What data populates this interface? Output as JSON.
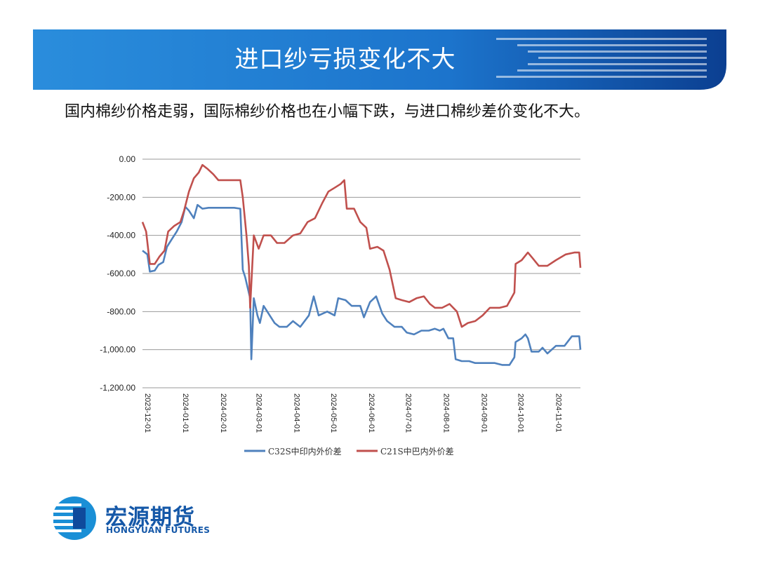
{
  "slide": {
    "title": "进口纱亏损变化不大",
    "subtitle": "国内棉纱价格走弱，国际棉纱价格也在小幅下跌，与进口棉纱差价变化不大。",
    "colors": {
      "banner": "#1a84d6",
      "banner_dark": "#0b3f91",
      "text": "#111111"
    }
  },
  "logo": {
    "name_cn": "宏源期货",
    "name_en": "HONGYUAN FUTURES",
    "icon": "hongyuan-logo-icon",
    "color": "#1558a8"
  },
  "chart_data": {
    "type": "line",
    "title": "",
    "xlabel": "",
    "ylabel": "",
    "ylim": [
      -1200,
      0
    ],
    "yticks": [
      0,
      -200,
      -400,
      -600,
      -800,
      -1000,
      -1200
    ],
    "ytick_labels": [
      "0.00",
      "-200.00",
      "-400.00",
      "-600.00",
      "-800.00",
      "-1,000.00",
      "-1,200.00"
    ],
    "x_range": [
      "2023-12-01",
      "2024-11-23"
    ],
    "xtick_labels": [
      "2023-12-01",
      "2024-01-01",
      "2024-02-01",
      "2024-03-01",
      "2024-04-01",
      "2024-05-01",
      "2024-06-01",
      "2024-07-01",
      "2024-08-01",
      "2024-09-01",
      "2024-10-01",
      "2024-11-01"
    ],
    "grid": "horizontal",
    "legend": "bottom",
    "series": [
      {
        "name": "C32S中印内外价差",
        "color": "#4f81bd",
        "points": [
          [
            "2023-12-01",
            -480
          ],
          [
            "2023-12-05",
            -500
          ],
          [
            "2023-12-07",
            -590
          ],
          [
            "2023-12-11",
            -585
          ],
          [
            "2023-12-14",
            -555
          ],
          [
            "2023-12-18",
            -540
          ],
          [
            "2023-12-21",
            -460
          ],
          [
            "2023-12-25",
            -420
          ],
          [
            "2023-12-29",
            -380
          ],
          [
            "2024-01-02",
            -330
          ],
          [
            "2024-01-05",
            -250
          ],
          [
            "2024-01-08",
            -270
          ],
          [
            "2024-01-12",
            -310
          ],
          [
            "2024-01-15",
            -240
          ],
          [
            "2024-01-19",
            -260
          ],
          [
            "2024-01-24",
            -255
          ],
          [
            "2024-01-29",
            -255
          ],
          [
            "2024-02-05",
            -255
          ],
          [
            "2024-02-14",
            -255
          ],
          [
            "2024-02-19",
            -260
          ],
          [
            "2024-02-21",
            -580
          ],
          [
            "2024-02-23",
            -620
          ],
          [
            "2024-02-27",
            -730
          ],
          [
            "2024-02-28",
            -1050
          ],
          [
            "2024-03-01",
            -730
          ],
          [
            "2024-03-04",
            -820
          ],
          [
            "2024-03-06",
            -860
          ],
          [
            "2024-03-09",
            -770
          ],
          [
            "2024-03-14",
            -820
          ],
          [
            "2024-03-18",
            -860
          ],
          [
            "2024-03-22",
            -880
          ],
          [
            "2024-03-28",
            -880
          ],
          [
            "2024-04-02",
            -850
          ],
          [
            "2024-04-08",
            -880
          ],
          [
            "2024-04-15",
            -820
          ],
          [
            "2024-04-19",
            -720
          ],
          [
            "2024-04-23",
            -820
          ],
          [
            "2024-04-30",
            -800
          ],
          [
            "2024-05-06",
            -820
          ],
          [
            "2024-05-09",
            -730
          ],
          [
            "2024-05-15",
            -740
          ],
          [
            "2024-05-20",
            -770
          ],
          [
            "2024-05-27",
            -770
          ],
          [
            "2024-05-30",
            -830
          ],
          [
            "2024-06-04",
            -750
          ],
          [
            "2024-06-09",
            -720
          ],
          [
            "2024-06-14",
            -810
          ],
          [
            "2024-06-18",
            -850
          ],
          [
            "2024-06-24",
            -880
          ],
          [
            "2024-06-30",
            -880
          ],
          [
            "2024-07-04",
            -910
          ],
          [
            "2024-07-10",
            -920
          ],
          [
            "2024-07-16",
            -900
          ],
          [
            "2024-07-22",
            -900
          ],
          [
            "2024-07-27",
            -890
          ],
          [
            "2024-07-31",
            -900
          ],
          [
            "2024-08-03",
            -890
          ],
          [
            "2024-08-07",
            -940
          ],
          [
            "2024-08-11",
            -940
          ],
          [
            "2024-08-13",
            -1050
          ],
          [
            "2024-08-18",
            -1060
          ],
          [
            "2024-08-24",
            -1060
          ],
          [
            "2024-08-29",
            -1070
          ],
          [
            "2024-09-06",
            -1070
          ],
          [
            "2024-09-14",
            -1070
          ],
          [
            "2024-09-20",
            -1080
          ],
          [
            "2024-09-26",
            -1080
          ],
          [
            "2024-09-30",
            -1040
          ],
          [
            "2024-10-01",
            -960
          ],
          [
            "2024-10-06",
            -940
          ],
          [
            "2024-10-09",
            -920
          ],
          [
            "2024-10-11",
            -940
          ],
          [
            "2024-10-14",
            -1010
          ],
          [
            "2024-10-20",
            -1010
          ],
          [
            "2024-10-23",
            -990
          ],
          [
            "2024-10-27",
            -1020
          ],
          [
            "2024-11-03",
            -980
          ],
          [
            "2024-11-10",
            -980
          ],
          [
            "2024-11-16",
            -930
          ],
          [
            "2024-11-22",
            -930
          ],
          [
            "2024-11-23",
            -1000
          ]
        ]
      },
      {
        "name": "C21S中巴内外价差",
        "color": "#c0504d",
        "points": [
          [
            "2023-12-01",
            -330
          ],
          [
            "2023-12-04",
            -380
          ],
          [
            "2023-12-07",
            -550
          ],
          [
            "2023-12-11",
            -550
          ],
          [
            "2023-12-15",
            -510
          ],
          [
            "2023-12-19",
            -480
          ],
          [
            "2023-12-22",
            -380
          ],
          [
            "2023-12-27",
            -350
          ],
          [
            "2024-01-01",
            -330
          ],
          [
            "2024-01-04",
            -270
          ],
          [
            "2024-01-08",
            -170
          ],
          [
            "2024-01-12",
            -100
          ],
          [
            "2024-01-16",
            -70
          ],
          [
            "2024-01-19",
            -30
          ],
          [
            "2024-01-23",
            -50
          ],
          [
            "2024-01-28",
            -80
          ],
          [
            "2024-02-01",
            -110
          ],
          [
            "2024-02-10",
            -110
          ],
          [
            "2024-02-19",
            -110
          ],
          [
            "2024-02-21",
            -200
          ],
          [
            "2024-02-24",
            -400
          ],
          [
            "2024-02-26",
            -560
          ],
          [
            "2024-02-27",
            -780
          ],
          [
            "2024-03-01",
            -400
          ],
          [
            "2024-03-05",
            -470
          ],
          [
            "2024-03-09",
            -400
          ],
          [
            "2024-03-15",
            -400
          ],
          [
            "2024-03-20",
            -440
          ],
          [
            "2024-03-26",
            -440
          ],
          [
            "2024-04-02",
            -400
          ],
          [
            "2024-04-08",
            -390
          ],
          [
            "2024-04-14",
            -330
          ],
          [
            "2024-04-20",
            -310
          ],
          [
            "2024-04-26",
            -230
          ],
          [
            "2024-05-01",
            -170
          ],
          [
            "2024-05-06",
            -150
          ],
          [
            "2024-05-11",
            -130
          ],
          [
            "2024-05-14",
            -110
          ],
          [
            "2024-05-16",
            -260
          ],
          [
            "2024-05-22",
            -260
          ],
          [
            "2024-05-27",
            -330
          ],
          [
            "2024-06-01",
            -360
          ],
          [
            "2024-06-04",
            -470
          ],
          [
            "2024-06-10",
            -460
          ],
          [
            "2024-06-15",
            -480
          ],
          [
            "2024-06-20",
            -580
          ],
          [
            "2024-06-25",
            -730
          ],
          [
            "2024-06-30",
            -740
          ],
          [
            "2024-07-06",
            -750
          ],
          [
            "2024-07-12",
            -730
          ],
          [
            "2024-07-18",
            -720
          ],
          [
            "2024-07-23",
            -760
          ],
          [
            "2024-07-27",
            -780
          ],
          [
            "2024-08-02",
            -780
          ],
          [
            "2024-08-08",
            -760
          ],
          [
            "2024-08-14",
            -800
          ],
          [
            "2024-08-18",
            -880
          ],
          [
            "2024-08-23",
            -860
          ],
          [
            "2024-08-29",
            -850
          ],
          [
            "2024-09-04",
            -820
          ],
          [
            "2024-09-10",
            -780
          ],
          [
            "2024-09-18",
            -780
          ],
          [
            "2024-09-24",
            -770
          ],
          [
            "2024-09-30",
            -700
          ],
          [
            "2024-10-01",
            -550
          ],
          [
            "2024-10-06",
            -530
          ],
          [
            "2024-10-11",
            -490
          ],
          [
            "2024-10-15",
            -520
          ],
          [
            "2024-10-20",
            -560
          ],
          [
            "2024-10-27",
            -560
          ],
          [
            "2024-11-03",
            -530
          ],
          [
            "2024-11-11",
            -500
          ],
          [
            "2024-11-18",
            -490
          ],
          [
            "2024-11-22",
            -490
          ],
          [
            "2024-11-23",
            -570
          ]
        ]
      }
    ]
  }
}
